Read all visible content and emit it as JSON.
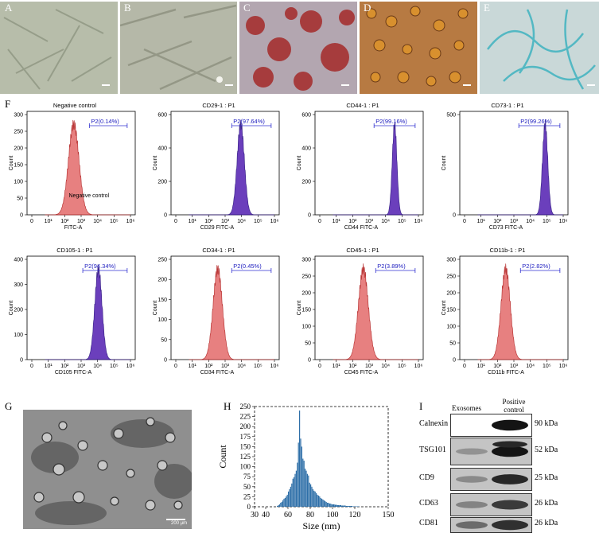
{
  "panels": {
    "A": "A",
    "B": "B",
    "C": "C",
    "D": "D",
    "E": "E",
    "F": "F",
    "G": "G",
    "H": "H",
    "I": "I"
  },
  "tem_scale": "200 μm",
  "flow_plots": [
    {
      "title": "Negative control",
      "xlabel": "FITC-A",
      "gate": "P2(0.14%)",
      "ymax": 300,
      "yticks": [
        "0",
        "50",
        "100",
        "150",
        "200",
        "250",
        "300"
      ],
      "inner_label": "Negative control",
      "color": "#e57373",
      "peak": 2.55,
      "width": 0.32
    },
    {
      "title": "CD29-1 : P1",
      "xlabel": "CD29 FITC-A",
      "gate": "P2(97.64%)",
      "ymax": 600,
      "yticks": [
        "0",
        "200",
        "400",
        "600"
      ],
      "inner_label": "",
      "color": "#5b2bb5",
      "peak": 3.95,
      "width": 0.22
    },
    {
      "title": "CD44-1 : P1",
      "xlabel": "CD44 FITC-A",
      "gate": "P2(99.16%)",
      "ymax": 600,
      "yticks": [
        "0",
        "200",
        "400",
        "600"
      ],
      "inner_label": "",
      "color": "#5b2bb5",
      "peak": 4.55,
      "width": 0.14
    },
    {
      "title": "CD73-1 : P1",
      "xlabel": "CD73 FITC-A",
      "gate": "P2(99.26%)",
      "ymax": 500,
      "yticks": [
        "0",
        "500"
      ],
      "inner_label": "",
      "color": "#5b2bb5",
      "peak": 4.9,
      "width": 0.16
    },
    {
      "title": "CD105-1 : P1",
      "xlabel": "CD105 FITC-A",
      "gate": "P2(94.34%)",
      "ymax": 400,
      "yticks": [
        "0",
        "100",
        "200",
        "300",
        "400"
      ],
      "inner_label": "",
      "color": "#5b2bb5",
      "peak": 4.05,
      "width": 0.22
    },
    {
      "title": "CD34-1 : P1",
      "xlabel": "CD34 FITC-A",
      "gate": "P2(0.45%)",
      "ymax": 250,
      "yticks": [
        "0",
        "50",
        "100",
        "150",
        "200",
        "250"
      ],
      "inner_label": "",
      "color": "#e57373",
      "peak": 2.55,
      "width": 0.28
    },
    {
      "title": "CD45-1 : P1",
      "xlabel": "CD45 FITC-A",
      "gate": "P2(3.89%)",
      "ymax": 300,
      "yticks": [
        "0",
        "50",
        "100",
        "150",
        "200",
        "250",
        "300"
      ],
      "inner_label": "",
      "color": "#e57373",
      "peak": 2.65,
      "width": 0.3
    },
    {
      "title": "CD11b-1 : P1",
      "xlabel": "CD11b FITC-A",
      "gate": "P2(2.82%)",
      "ymax": 300,
      "yticks": [
        "0",
        "50",
        "100",
        "150",
        "200",
        "250",
        "300"
      ],
      "inner_label": "",
      "color": "#e57373",
      "peak": 2.5,
      "width": 0.28
    }
  ],
  "flow_xticks": [
    "0",
    "10¹",
    "10²",
    "10³",
    "10⁴",
    "10⁵",
    "10⁶"
  ],
  "flow_ylabel": "Count",
  "chart_data": {
    "type": "bar",
    "xlabel": "Size (nm)",
    "ylabel": "Count",
    "xlim": [
      30,
      150
    ],
    "ylim": [
      0,
      250
    ],
    "xticks": [
      "30",
      "40",
      "60",
      "80",
      "100",
      "120",
      "150"
    ],
    "yticks": [
      "0",
      "25",
      "50",
      "75",
      "100",
      "125",
      "150",
      "175",
      "200",
      "225",
      "250"
    ],
    "color": "#2e6fa8",
    "bins": [
      50,
      51,
      52,
      53,
      54,
      55,
      56,
      57,
      58,
      59,
      60,
      61,
      62,
      63,
      64,
      65,
      66,
      67,
      68,
      69,
      70,
      71,
      72,
      73,
      74,
      75,
      76,
      77,
      78,
      79,
      80,
      81,
      82,
      83,
      84,
      85,
      86,
      87,
      88,
      89,
      90,
      91,
      92,
      93,
      94,
      95,
      96,
      97,
      98,
      99,
      100,
      102,
      104,
      106,
      108,
      110,
      112,
      114,
      116,
      118,
      120,
      122
    ],
    "values": [
      2,
      4,
      6,
      10,
      12,
      16,
      20,
      22,
      26,
      30,
      38,
      44,
      50,
      58,
      70,
      74,
      82,
      90,
      110,
      160,
      240,
      170,
      150,
      120,
      115,
      95,
      90,
      82,
      78,
      60,
      56,
      50,
      44,
      40,
      38,
      34,
      30,
      28,
      26,
      22,
      20,
      18,
      16,
      14,
      12,
      10,
      10,
      8,
      8,
      6,
      6,
      5,
      4,
      4,
      3,
      3,
      2,
      2,
      2,
      1,
      1,
      1
    ]
  },
  "blot": {
    "col_exosomes": "Exosomes",
    "col_positive": "Positive control",
    "rows": [
      {
        "protein": "Calnexin",
        "kda": "90 kDa",
        "exo": 0.0,
        "pos": 0.95
      },
      {
        "protein": "TSG101",
        "kda": "52 kDa",
        "exo": 0.35,
        "pos": 0.95
      },
      {
        "protein": "CD9",
        "kda": "25 kDa",
        "exo": 0.4,
        "pos": 0.85
      },
      {
        "protein": "CD63",
        "kda": "26 kDa",
        "exo": 0.45,
        "pos": 0.75
      },
      {
        "protein": "CD81",
        "kda": "26 kDa",
        "exo": 0.6,
        "pos": 0.8
      }
    ]
  }
}
